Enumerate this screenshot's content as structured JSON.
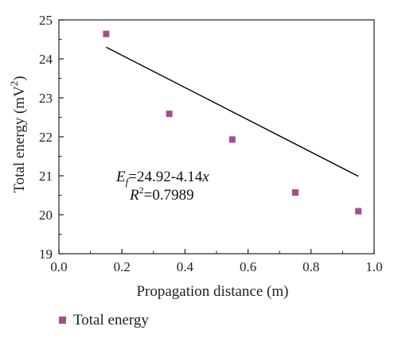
{
  "chart_data": {
    "type": "scatter",
    "title": "",
    "xlabel": "Propagation distance (m)",
    "ylabel_main": "Total energy (mV",
    "ylabel_sup": "2",
    "ylabel_tail": ")",
    "xlim": [
      0.0,
      1.0
    ],
    "ylim": [
      19,
      25
    ],
    "x_ticks": [
      0.0,
      0.2,
      0.4,
      0.6,
      0.8,
      1.0
    ],
    "x_tick_labels": [
      "0.0",
      "0.2",
      "0.4",
      "0.6",
      "0.8",
      "1.0"
    ],
    "y_ticks": [
      19,
      20,
      21,
      22,
      23,
      24,
      25
    ],
    "y_tick_labels": [
      "19",
      "20",
      "21",
      "22",
      "23",
      "24",
      "25"
    ],
    "grid": false,
    "series": [
      {
        "name": "Total energy",
        "marker": "square",
        "color": "#b0488f",
        "x": [
          0.15,
          0.35,
          0.55,
          0.75,
          0.95
        ],
        "y": [
          24.64,
          22.59,
          21.93,
          20.57,
          20.09
        ]
      }
    ],
    "fit_line": {
      "color": "#000000",
      "x": [
        0.15,
        0.95
      ],
      "intercept": 24.92,
      "slope": -4.14
    },
    "annotation": {
      "ef_symbol": "E",
      "ef_subscript": "f",
      "ef_rest": "=24.92-4.14",
      "ef_var": "x",
      "r2_symbol": "R",
      "r2_sup": "2",
      "r2_rest": "=0.7989"
    },
    "legend": {
      "position": "bottom-left",
      "label": "Total energy"
    }
  }
}
